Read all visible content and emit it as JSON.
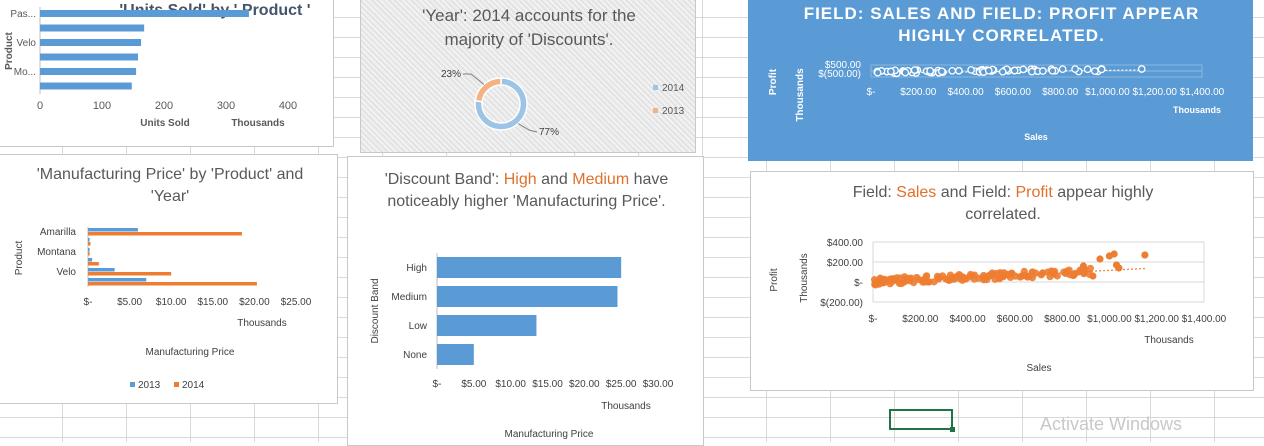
{
  "watermark": "Activate Windows",
  "chart_data": [
    {
      "type": "bar",
      "orientation": "horizontal",
      "title": "'Units Sold' by ' Product '",
      "xlabel": "Units Sold",
      "xunit": "Thousands",
      "ylabel": "Product",
      "xticks": [
        "0",
        "100",
        "200",
        "300",
        "400"
      ],
      "xlim": [
        0,
        400
      ],
      "categories": [
        "Pas...",
        "",
        "Velo",
        "",
        "Mo...",
        ""
      ],
      "values": [
        337,
        168,
        163,
        158,
        155,
        148
      ],
      "colors": {
        "bar": "#5b9bd5"
      }
    },
    {
      "type": "pie",
      "variant": "doughnut",
      "title": "'Year': 2014 accounts for the majority of 'Discounts'.",
      "labels": [
        "2014",
        "2013"
      ],
      "values": [
        77,
        23
      ],
      "data_labels": [
        "77%",
        "23%"
      ],
      "legend": "right",
      "colors": {
        "2014": "#9dc3e6",
        "2013": "#f4b183"
      }
    },
    {
      "type": "scatter",
      "title": "FIELD: SALES AND FIELD: PROFIT APPEAR HIGHLY CORRELATED.",
      "xlabel": "Sales",
      "xunit": "Thousands",
      "ylabel": "Profit",
      "yunit": "Thousands",
      "xticks": [
        "$-",
        "$200.00",
        "$400.00",
        "$600.00",
        "$800.00",
        "$1,000.00",
        "$1,200.00",
        "$1,400.00"
      ],
      "yticks": [
        "$500.00",
        "$(500.00)"
      ],
      "xlim": [
        0,
        1400
      ],
      "ylim": [
        -500,
        500
      ],
      "colors": {
        "background": "#5b9bd5",
        "marker": "#ffffff"
      }
    },
    {
      "type": "bar",
      "orientation": "horizontal",
      "title": "'Manufacturing Price' by 'Product' and 'Year'",
      "xlabel": "Manufacturing Price",
      "xunit": "Thousands",
      "ylabel": "Product",
      "xticks": [
        "$-",
        "$5.00",
        "$10.00",
        "$15.00",
        "$20.00",
        "$25.00"
      ],
      "xlim": [
        0,
        25
      ],
      "categories": [
        "Amarilla",
        "",
        "Montana",
        "",
        "Velo",
        ""
      ],
      "series": [
        {
          "name": "2013",
          "values": [
            6.0,
            0.2,
            0.2,
            0.5,
            3.2,
            7.0
          ]
        },
        {
          "name": "2014",
          "values": [
            18.5,
            0.3,
            0.2,
            1.3,
            10.0,
            20.3
          ]
        }
      ],
      "legend": "bottom",
      "colors": {
        "2013": "#5b9bd5",
        "2014": "#ed7d31"
      }
    },
    {
      "type": "bar",
      "orientation": "horizontal",
      "title_parts": [
        "'Discount Band': ",
        "High",
        " and ",
        "Medium",
        " have noticeably higher 'Manufacturing Price'."
      ],
      "xlabel": "Manufacturing Price",
      "xunit": "Thousands",
      "ylabel": "Discount Band",
      "xticks": [
        "$-",
        "$5.00",
        "$10.00",
        "$15.00",
        "$20.00",
        "$25.00",
        "$30.00"
      ],
      "xlim": [
        0,
        30
      ],
      "categories": [
        "High",
        "Medium",
        "Low",
        "None"
      ],
      "values": [
        25.0,
        24.5,
        13.5,
        5.0
      ],
      "colors": {
        "bar": "#5b9bd5",
        "highlight": "#e0702a"
      }
    },
    {
      "type": "scatter",
      "title_parts": [
        "Field: ",
        "Sales",
        " and Field: ",
        "Profit",
        " appear highly correlated."
      ],
      "xlabel": "Sales",
      "xunit": "Thousands",
      "ylabel": "Profit",
      "yunit": "Thousands",
      "xticks": [
        "$-",
        "$200.00",
        "$400.00",
        "$600.00",
        "$800.00",
        "$1,000.00",
        "$1,200.00",
        "$1,400.00"
      ],
      "yticks": [
        "$400.00",
        "$200.00",
        "$-",
        "$(200.00)"
      ],
      "xlim": [
        0,
        1400
      ],
      "ylim": [
        -200,
        400
      ],
      "trendline": true,
      "colors": {
        "marker": "#ed7d31"
      }
    }
  ]
}
